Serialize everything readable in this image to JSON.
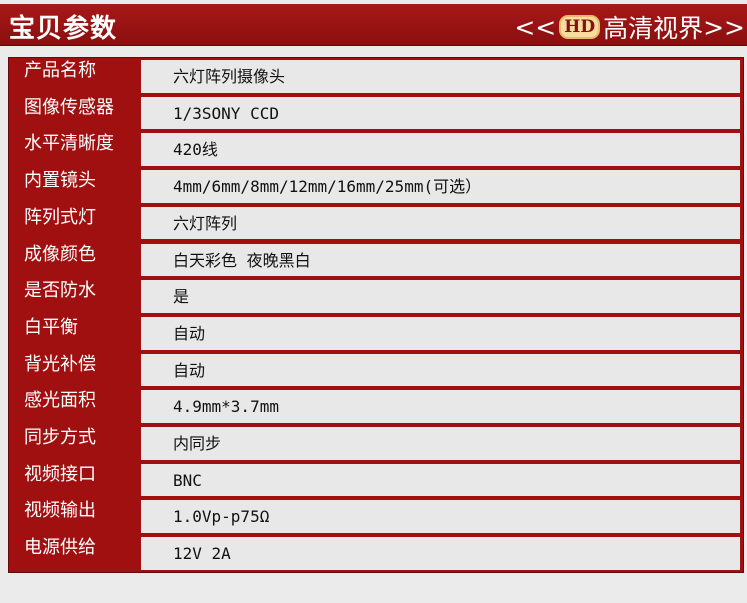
{
  "header": {
    "title": "宝贝参数",
    "slogan_left": "<<",
    "hd": "HD",
    "slogan_text": "高清视界",
    "slogan_right": ">>"
  },
  "colors": {
    "brand_red": "#a01010",
    "cell_bg": "#e8e8e8"
  },
  "rows": [
    {
      "label": "产品名称",
      "value": "六灯阵列摄像头"
    },
    {
      "label": "图像传感器",
      "value": "1/3SONY CCD"
    },
    {
      "label": "水平清晰度",
      "value": "420线"
    },
    {
      "label": "内置镜头",
      "value": "4mm/6mm/8mm/12mm/16mm/25mm(可选）"
    },
    {
      "label": "阵列式灯",
      "value": "六灯阵列"
    },
    {
      "label": "成像颜色",
      "value": "白天彩色 夜晚黑白"
    },
    {
      "label": "是否防水",
      "value": "是"
    },
    {
      "label": "白平衡",
      "value": "自动"
    },
    {
      "label": "背光补偿",
      "value": "自动"
    },
    {
      "label": "感光面积",
      "value": "4.9mm*3.7mm"
    },
    {
      "label": "同步方式",
      "value": "内同步"
    },
    {
      "label": "视频接口",
      "value": "BNC"
    },
    {
      "label": "视频输出",
      "value": "1.0Vp-p75Ω"
    },
    {
      "label": "电源供给",
      "value": "12V 2A"
    }
  ]
}
